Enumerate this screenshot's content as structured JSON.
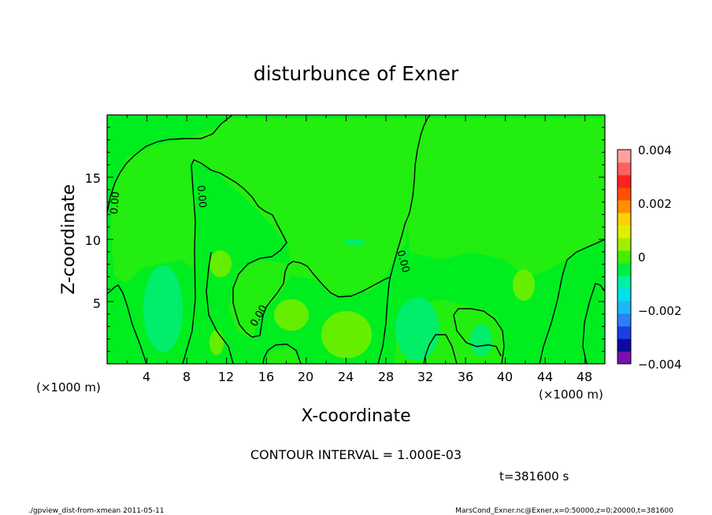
{
  "chart_data": {
    "type": "heatmap",
    "title": "disturbunce of Exner",
    "xlabel": "X-coordinate",
    "ylabel": "Z-coordinate",
    "x_unit": "(×1000 m)",
    "xlim": [
      0,
      50
    ],
    "ylim": [
      0,
      20
    ],
    "x_ticks": [
      "4",
      "8",
      "12",
      "16",
      "20",
      "24",
      "28",
      "32",
      "36",
      "40",
      "44",
      "48"
    ],
    "y_ticks": [
      "5",
      "10",
      "15"
    ],
    "contour_labels": [
      "0.00",
      "0.00",
      "0.00",
      "0.00"
    ],
    "colorbar": {
      "min": -0.004,
      "max": 0.004,
      "tick_labels": [
        "0.004",
        "0.002",
        "0",
        "−0.002",
        "−0.004"
      ],
      "colors": [
        "#7a0fb0",
        "#0a0aa0",
        "#1a3fe0",
        "#2a80f5",
        "#1ab8f5",
        "#00e0ee",
        "#00f0a0",
        "#00ee40",
        "#40ee00",
        "#a0ee00",
        "#e0ee00",
        "#ffd000",
        "#ff9000",
        "#ff5000",
        "#ff2020",
        "#ff6060",
        "#ffa0a0"
      ]
    },
    "background_color": "#00ee20"
  },
  "annotations": {
    "contour_interval": "CONTOUR INTERVAL = 1.000E-03",
    "time": "t=381600 s",
    "footer_left": "./gpview_dist-from-xmean 2011-05-11",
    "footer_right": "MarsCond_Exner.nc@Exner,x=0:50000,z=0:20000,t=381600"
  }
}
